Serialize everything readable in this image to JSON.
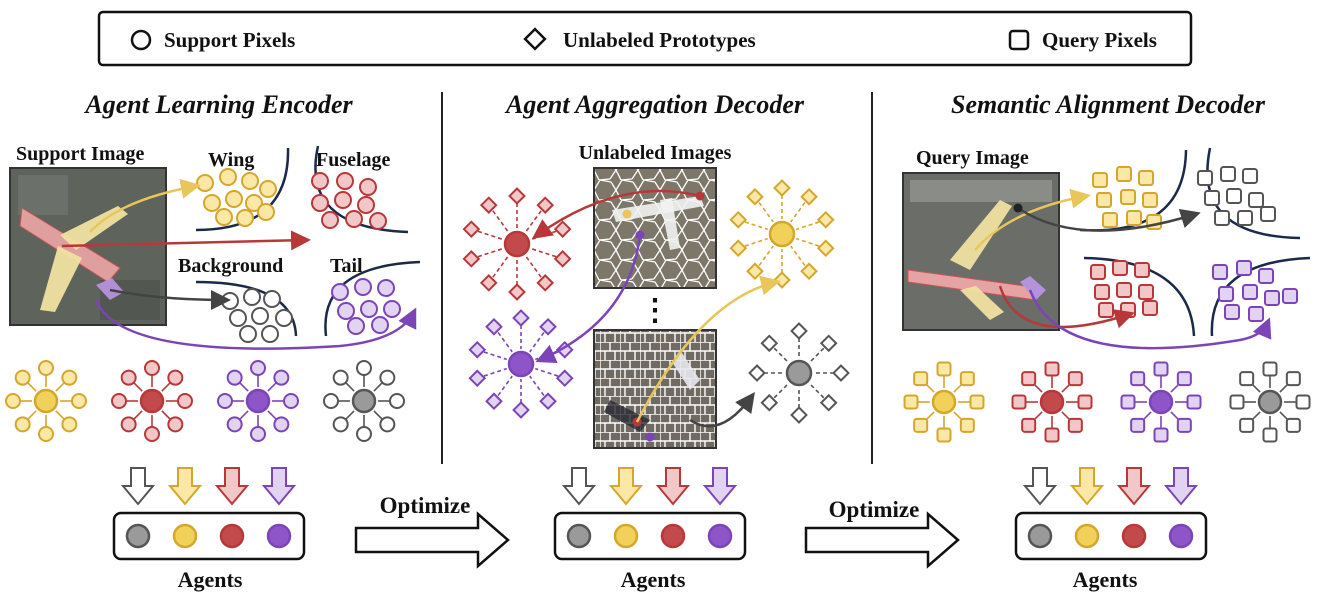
{
  "legend": {
    "support": "Support Pixels",
    "unlabeled": "Unlabeled Prototypes",
    "query": "Query Pixels"
  },
  "panels": {
    "encoder": {
      "title": "Agent Learning Encoder",
      "image_label": "Support Image",
      "regions": {
        "wing": "Wing",
        "fuselage": "Fuselage",
        "background": "Background",
        "tail": "Tail"
      },
      "agents_label": "Agents"
    },
    "aggregation": {
      "title": "Agent Aggregation Decoder",
      "image_label": "Unlabeled Images",
      "ellipsis": "⋮",
      "agents_label": "Agents"
    },
    "alignment": {
      "title": "Semantic Alignment Decoder",
      "image_label": "Query Image",
      "agents_label": "Agents"
    }
  },
  "arrows": {
    "optimize_1": "Optimize",
    "optimize_2": "Optimize"
  },
  "colors": {
    "yellow_fill": "#fbe7a6",
    "yellow_stroke": "#d4a72c",
    "yellow_core": "#f2d15a",
    "red_fill": "#f2c7c7",
    "red_stroke": "#b8383a",
    "red_core": "#c24a4a",
    "purple_fill": "#e2d3f3",
    "purple_stroke": "#7b45b8",
    "purple_core": "#8e55c8",
    "gray_fill": "#ffffff",
    "gray_stroke": "#555555",
    "gray_core": "#9a9a9a",
    "border": "#1b2a4a"
  }
}
